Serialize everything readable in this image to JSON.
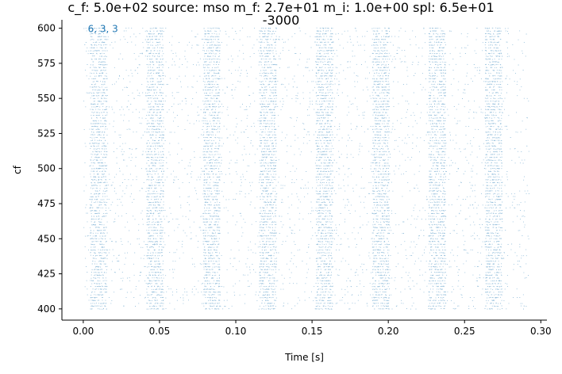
{
  "chart_data": {
    "type": "scatter",
    "title_line1": "c_f: 5.0e+02 source: mso m_f: 2.7e+01 m_i: 1.0e+00 spl: 6.5e+01",
    "title_line2": "-3000",
    "xlabel": "Time [s]",
    "ylabel": "cf",
    "annotation": "6, 3, 3",
    "xlim": [
      -0.014,
      0.304
    ],
    "ylim": [
      392,
      606
    ],
    "xticks": [
      0.0,
      0.05,
      0.1,
      0.15,
      0.2,
      0.25,
      0.3
    ],
    "xtick_labels": [
      "0.00",
      "0.05",
      "0.10",
      "0.15",
      "0.20",
      "0.25",
      "0.30"
    ],
    "yticks": [
      400,
      425,
      450,
      475,
      500,
      525,
      550,
      575,
      600
    ],
    "ytick_labels": [
      "400",
      "425",
      "450",
      "475",
      "500",
      "525",
      "550",
      "575",
      "600"
    ],
    "x_range": [
      0.0,
      0.292
    ],
    "y_range": [
      400,
      600
    ],
    "cf_channel_step": 2,
    "modulation_period_s": 0.037,
    "burst_phase_s": 0.011,
    "burst_width_s": 0.008,
    "color": "#1f77b4",
    "grid": false
  }
}
